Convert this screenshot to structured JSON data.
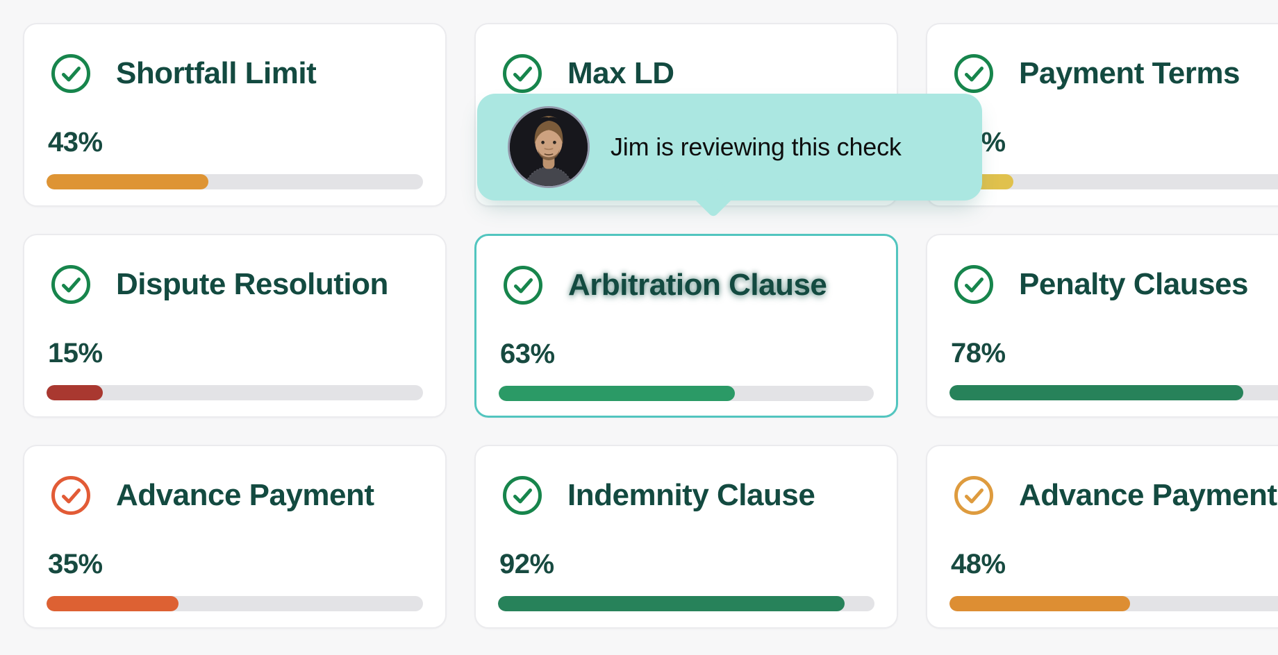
{
  "palette": {
    "page_bg": "#f7f7f8",
    "card_bg": "#ffffff",
    "card_border": "#ebebee",
    "selected_border": "#52c5bf",
    "title_color": "#134a40",
    "track_color": "#e3e3e6",
    "tooltip_bg": "#abe7e1",
    "green_icon": "#17854c",
    "orange_icon": "#e25b36",
    "amber_icon": "#de9b3e"
  },
  "tooltip": {
    "user_status": "Jim is reviewing this check",
    "avatar": "jim-avatar",
    "bg": "#abe7e1"
  },
  "cards": [
    {
      "title": "Shortfall Limit",
      "percent": "43%",
      "progress": 43,
      "bar_color": "#de9434",
      "icon_color": "#17854c",
      "selected": false
    },
    {
      "title": "Max LD",
      "percent": "",
      "progress": null,
      "bar_color": "",
      "icon_color": "#17854c",
      "selected": false
    },
    {
      "title": "Payment Terms",
      "percent": "17%",
      "progress": 17,
      "bar_color": "#e0c14d",
      "icon_color": "#17854c",
      "selected": false
    },
    {
      "title": "Dispute Resolution",
      "percent": "15%",
      "progress": 15,
      "bar_color": "#a93830",
      "icon_color": "#17854c",
      "selected": false
    },
    {
      "title": "Arbitration Clause",
      "percent": "63%",
      "progress": 63,
      "bar_color": "#2b9a66",
      "icon_color": "#17854c",
      "selected": true
    },
    {
      "title": "Penalty Clauses",
      "percent": "78%",
      "progress": 78,
      "bar_color": "#27825a",
      "icon_color": "#17854c",
      "selected": false
    },
    {
      "title": "Advance Payment",
      "percent": "35%",
      "progress": 35,
      "bar_color": "#dd6133",
      "icon_color": "#e25b36",
      "selected": false
    },
    {
      "title": "Indemnity Clause",
      "percent": "92%",
      "progress": 92,
      "bar_color": "#27825a",
      "icon_color": "#17854c",
      "selected": false
    },
    {
      "title": "Advance Payment",
      "percent": "48%",
      "progress": 48,
      "bar_color": "#dd8e33",
      "icon_color": "#de9b3e",
      "selected": false
    }
  ]
}
